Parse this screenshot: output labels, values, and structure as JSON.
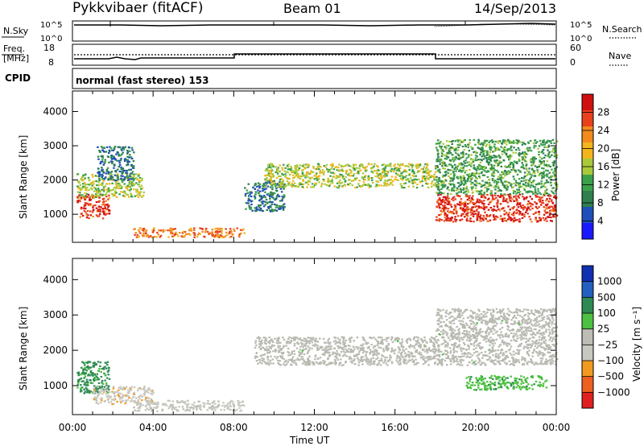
{
  "header": {
    "station": "Pykkvibaer (fitACF)",
    "beam": "Beam 01",
    "date": "14/Sep/2013"
  },
  "sky_panel": {
    "left_label": "N.Sky",
    "right_label": "N.Search",
    "ticks_left": [
      "10^5",
      "10^0"
    ],
    "ticks_right": [
      "10^5",
      "10^0"
    ]
  },
  "freq_panel": {
    "left_label_1": "Freq.",
    "left_label_2": "[MHz]",
    "right_label": "Nave",
    "ticks_left": [
      "18",
      "8"
    ],
    "ticks_right": [
      "60",
      "0"
    ]
  },
  "cpid_panel": {
    "label": "CPID",
    "mode": "normal (fast stereo) 153"
  },
  "colors": {
    "power_scale": [
      "#1a1aff",
      "#1f4fb8",
      "#2f7f4f",
      "#3aa04a",
      "#a9c93a",
      "#f2b61c",
      "#f28a1e",
      "#e9401d",
      "#d01010"
    ],
    "velocity_scale": [
      "#1030b0",
      "#2260c0",
      "#2e8a52",
      "#4cc040",
      "#bdbdb5",
      "#c8c8c0",
      "#f29a20",
      "#ee6020",
      "#e02020"
    ],
    "ground_scatter": "#b9b9b1"
  },
  "chart_data": [
    {
      "type": "heatmap",
      "title": "",
      "xlabel": "Time UT",
      "ylabel": "Slant Range [km]",
      "x_ticks": [
        "00:00",
        "04:00",
        "08:00",
        "12:00",
        "16:00",
        "20:00",
        "00:00"
      ],
      "y_ticks": [
        "1000",
        "2000",
        "3000",
        "4000"
      ],
      "ylim": [
        180,
        4600
      ],
      "xlim_hours": [
        0,
        24
      ],
      "colorbar": {
        "label": "Power [dB]",
        "ticks": [
          "4",
          "8",
          "12",
          "16",
          "20",
          "24",
          "28"
        ],
        "range": [
          0,
          32
        ]
      },
      "echo_bands": [
        {
          "t0": 0.2,
          "t1": 1.8,
          "r0": 900,
          "r1": 1600,
          "level": 28
        },
        {
          "t0": 0.2,
          "t1": 3.5,
          "r0": 1500,
          "r1": 2200,
          "level": 16
        },
        {
          "t0": 1.2,
          "t1": 3.0,
          "r0": 2000,
          "r1": 3000,
          "level": 8
        },
        {
          "t0": 3.0,
          "t1": 8.5,
          "r0": 350,
          "r1": 620,
          "level": 24
        },
        {
          "t0": 8.5,
          "t1": 10.5,
          "r0": 1100,
          "r1": 2000,
          "level": 8
        },
        {
          "t0": 9.5,
          "t1": 18.0,
          "r0": 1800,
          "r1": 2500,
          "level": 16
        },
        {
          "t0": 18.0,
          "t1": 24.0,
          "r0": 800,
          "r1": 1600,
          "level": 28
        },
        {
          "t0": 18.0,
          "t1": 24.0,
          "r0": 1600,
          "r1": 3200,
          "level": 12
        }
      ]
    },
    {
      "type": "heatmap",
      "title": "",
      "xlabel": "Time UT",
      "ylabel": "Slant Range [km]",
      "x_ticks": [
        "00:00",
        "04:00",
        "08:00",
        "12:00",
        "16:00",
        "20:00",
        "00:00"
      ],
      "y_ticks": [
        "1000",
        "2000",
        "3000",
        "4000"
      ],
      "ylim": [
        180,
        4600
      ],
      "xlim_hours": [
        0,
        24
      ],
      "colorbar": {
        "label": "Velocity [m s⁻¹]",
        "ticks": [
          "1000",
          "500",
          "100",
          "25",
          "−25",
          "−100",
          "−500",
          "−1000"
        ],
        "range": [
          -1200,
          1200
        ]
      },
      "echo_bands": [
        {
          "t0": 0.2,
          "t1": 1.8,
          "r0": 800,
          "r1": 1700,
          "level": 500
        },
        {
          "t0": 1.0,
          "t1": 4.0,
          "r0": 500,
          "r1": 1000,
          "level": -300
        },
        {
          "t0": 3.0,
          "t1": 8.5,
          "r0": 300,
          "r1": 600,
          "level": -200
        },
        {
          "t0": 9.0,
          "t1": 18.0,
          "r0": 1600,
          "r1": 2400,
          "level": 0
        },
        {
          "t0": 18.0,
          "t1": 24.0,
          "r0": 1600,
          "r1": 3200,
          "level": 0
        },
        {
          "t0": 19.5,
          "t1": 23.5,
          "r0": 900,
          "r1": 1300,
          "level": 300
        }
      ]
    }
  ]
}
